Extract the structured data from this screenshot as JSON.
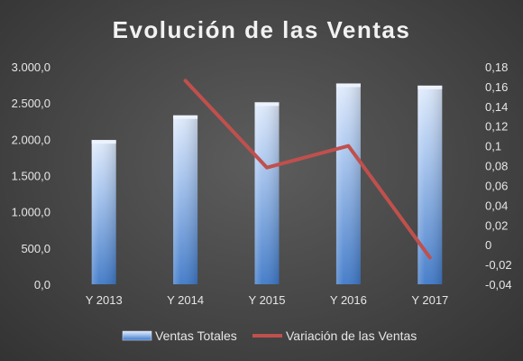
{
  "chart_data": {
    "type": "bar",
    "title": "Evolución de las Ventas",
    "categories": [
      "Y 2013",
      "Y 2014",
      "Y 2015",
      "Y 2016",
      "Y 2017"
    ],
    "series": [
      {
        "name": "Ventas Totales",
        "type": "bar",
        "axis": "left",
        "values": [
          1990,
          2330,
          2510,
          2770,
          2740
        ]
      },
      {
        "name": "Variación de las Ventas",
        "type": "line",
        "axis": "right",
        "values": [
          null,
          0.166,
          0.078,
          0.1,
          -0.013
        ]
      }
    ],
    "y_left": {
      "lim": [
        0,
        3000
      ],
      "ticks": [
        "0,0",
        "500,0",
        "1.000,0",
        "1.500,0",
        "2.000,0",
        "2.500,0",
        "3.000,0"
      ]
    },
    "y_right": {
      "lim": [
        -0.04,
        0.18
      ],
      "ticks": [
        "-0,04",
        "-0,02",
        "0",
        "0,02",
        "0,04",
        "0,06",
        "0,08",
        "0,1",
        "0,12",
        "0,14",
        "0,16",
        "0,18"
      ]
    },
    "legend_position": "bottom",
    "grid": false,
    "colors": {
      "bar_top": "#dce8fb",
      "bar_bottom": "#3f79c8",
      "line": "#c0504d",
      "text": "#e6e6e6"
    }
  }
}
